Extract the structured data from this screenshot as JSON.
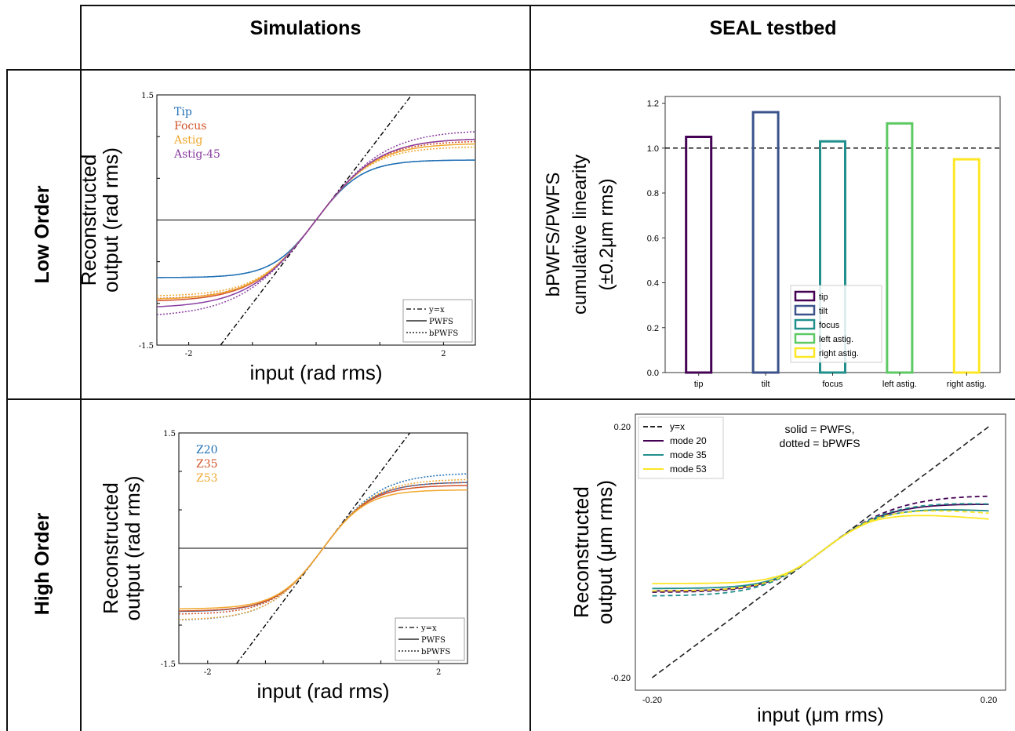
{
  "headers": {
    "col1": "Simulations",
    "col2": "SEAL testbed"
  },
  "rows": {
    "low": "Low Order",
    "high": "High Order"
  },
  "charts": {
    "sim_low": {
      "type": "line",
      "ylabel_line1": "Reconstructed",
      "ylabel_line2": "output (rad rms)",
      "xlabel": "input (rad rms)",
      "yticks": [
        "1.5",
        "-1.5"
      ],
      "xticks": [
        "-2",
        "2"
      ],
      "modes": [
        {
          "name": "Tip",
          "color": "#1f6fb5",
          "sat": 0.72,
          "sat_dot": 0.72
        },
        {
          "name": "Focus",
          "color": "#d2532a",
          "sat": 0.98,
          "sat_dot": 0.95
        },
        {
          "name": "Astig",
          "color": "#f0a830",
          "sat": 0.92,
          "sat_dot": 0.88
        },
        {
          "name": "Astig-45",
          "color": "#8a3fa0",
          "sat": 0.98,
          "sat_dot": 1.08
        }
      ],
      "legend": [
        "y=x",
        "PWFS",
        "bPWFS"
      ]
    },
    "seal_low": {
      "type": "bar",
      "ylabel_line1": "bPWFS/PWFS",
      "ylabel_line2": "cumulative linearity",
      "ylabel_line3": "(±0.2μm rms)",
      "categories": [
        "tip",
        "tilt",
        "focus",
        "left astig.",
        "right astig."
      ],
      "values": [
        1.05,
        1.16,
        1.03,
        1.11,
        0.95
      ],
      "colors": [
        "#440154",
        "#3b528b",
        "#21908d",
        "#5dc963",
        "#fde725"
      ],
      "yticks": [
        "0.0",
        "0.2",
        "0.4",
        "0.6",
        "0.8",
        "1.0",
        "1.2"
      ],
      "ylim": [
        0,
        1.23
      ],
      "reference": 1.0,
      "legend_position": "lower-right"
    },
    "sim_high": {
      "type": "line",
      "ylabel_line1": "Reconstructed",
      "ylabel_line2": "output (rad rms)",
      "xlabel": "input (rad rms)",
      "yticks": [
        "1.5",
        "-1.5"
      ],
      "xticks": [
        "-2",
        "2"
      ],
      "modes": [
        {
          "name": "Z20",
          "color": "#1f6fb5",
          "sat": 0.86,
          "sat_dot": 0.98
        },
        {
          "name": "Z35",
          "color": "#d2532a",
          "sat": 0.82,
          "sat_dot": 0.86
        },
        {
          "name": "Z53",
          "color": "#f0a830",
          "sat": 0.76,
          "sat_dot": 0.9
        }
      ],
      "legend": [
        "y=x",
        "PWFS",
        "bPWFS"
      ]
    },
    "seal_high": {
      "type": "line",
      "ylabel_line1": "Reconstructed",
      "ylabel_line2": "output (μm rms)",
      "xlabel": "input (μm rms)",
      "yticks": [
        "0.20",
        "-0.20"
      ],
      "xticks": [
        "-0.20",
        "0.20"
      ],
      "note_line1": "solid = PWFS,",
      "note_line2": "dotted = bPWFS",
      "legend": [
        "y=x",
        "mode 20",
        "mode 35",
        "mode 53"
      ],
      "colors": [
        "#222222",
        "#440154",
        "#21908d",
        "#fde725"
      ]
    }
  }
}
